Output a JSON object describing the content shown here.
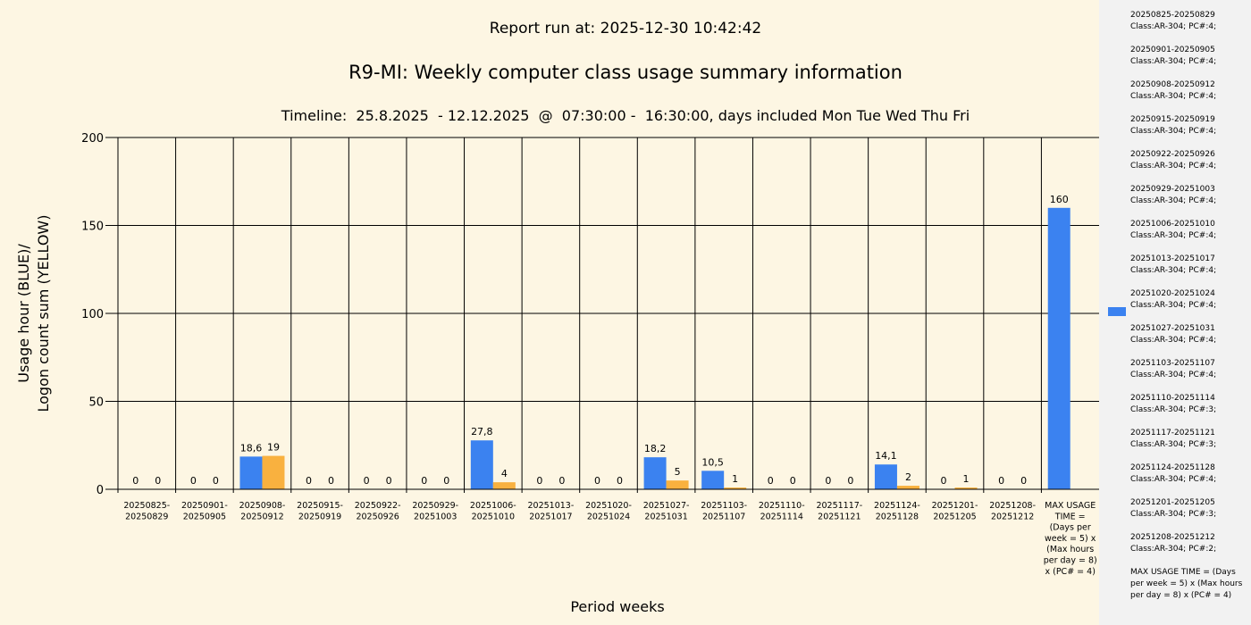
{
  "header": {
    "report_run": "Report run at: 2025-12-30 10:42:42",
    "title": "R9-MI: Weekly computer class usage summary information",
    "subtitle": "Timeline:  25.8.2025  - 12.12.2025  @  07:30:00 -  16:30:00, days included Mon Tue Wed Thu Fri"
  },
  "chart_data": {
    "type": "bar",
    "xlabel": "Period weeks",
    "ylabel_lines": [
      "Usage hour (BLUE)/",
      "Logon count sum (YELLOW)"
    ],
    "ylim": [
      0,
      200
    ],
    "yticks": [
      0,
      50,
      100,
      150,
      200
    ],
    "grid": true,
    "legend_position": "right",
    "categories": [
      [
        "20250825-",
        "20250829"
      ],
      [
        "20250901-",
        "20250905"
      ],
      [
        "20250908-",
        "20250912"
      ],
      [
        "20250915-",
        "20250919"
      ],
      [
        "20250922-",
        "20250926"
      ],
      [
        "20250929-",
        "20251003"
      ],
      [
        "20251006-",
        "20251010"
      ],
      [
        "20251013-",
        "20251017"
      ],
      [
        "20251020-",
        "20251024"
      ],
      [
        "20251027-",
        "20251031"
      ],
      [
        "20251103-",
        "20251107"
      ],
      [
        "20251110-",
        "20251114"
      ],
      [
        "20251117-",
        "20251121"
      ],
      [
        "20251124-",
        "20251128"
      ],
      [
        "20251201-",
        "20251205"
      ],
      [
        "20251208-",
        "20251212"
      ],
      [
        "MAX USAGE",
        "TIME =",
        "(Days per",
        "week = 5) x",
        "(Max hours",
        "per day = 8)",
        "x (PC# = 4)"
      ]
    ],
    "series": [
      {
        "color": "#3b82f0",
        "values": [
          0,
          0,
          18.6,
          0,
          0,
          0,
          27.8,
          0,
          0,
          18.2,
          10.5,
          0,
          0,
          14.1,
          0,
          0,
          160
        ],
        "labels": [
          "0",
          "0",
          "18,6",
          "0",
          "0",
          "0",
          "27,8",
          "0",
          "0",
          "18,2",
          "10,5",
          "0",
          "0",
          "14,1",
          "0",
          "0",
          "160"
        ]
      },
      {
        "color": "#f9b13f",
        "values": [
          0,
          0,
          19,
          0,
          0,
          0,
          4,
          0,
          0,
          5,
          1,
          0,
          0,
          2,
          1,
          0,
          null
        ],
        "labels": [
          "0",
          "0",
          "19",
          "0",
          "0",
          "0",
          "4",
          "0",
          "0",
          "5",
          "1",
          "0",
          "0",
          "2",
          "1",
          "0",
          null
        ]
      }
    ]
  },
  "legend": {
    "items": [
      [
        "20250825-20250829",
        "Class:AR-304; PC#:4;"
      ],
      [
        "20250901-20250905",
        "Class:AR-304; PC#:4;"
      ],
      [
        "20250908-20250912",
        "Class:AR-304; PC#:4;"
      ],
      [
        "20250915-20250919",
        "Class:AR-304; PC#:4;"
      ],
      [
        "20250922-20250926",
        "Class:AR-304; PC#:4;"
      ],
      [
        "20250929-20251003",
        "Class:AR-304; PC#:4;"
      ],
      [
        "20251006-20251010",
        "Class:AR-304; PC#:4;"
      ],
      [
        "20251013-20251017",
        "Class:AR-304; PC#:4;"
      ],
      [
        "20251020-20251024",
        "Class:AR-304; PC#:4;"
      ],
      [
        "20251027-20251031",
        "Class:AR-304; PC#:4;"
      ],
      [
        "20251103-20251107",
        "Class:AR-304; PC#:4;"
      ],
      [
        "20251110-20251114",
        "Class:AR-304; PC#:3;"
      ],
      [
        "20251117-20251121",
        "Class:AR-304; PC#:3;"
      ],
      [
        "20251124-20251128",
        "Class:AR-304; PC#:4;"
      ],
      [
        "20251201-20251205",
        "Class:AR-304; PC#:3;"
      ],
      [
        "20251208-20251212",
        "Class:AR-304; PC#:2;"
      ]
    ],
    "max_item": "MAX USAGE TIME =  (Days per week = 5) x (Max hours per day = 8) x (PC# = 4)",
    "swatch_color": "#3b82f0"
  }
}
